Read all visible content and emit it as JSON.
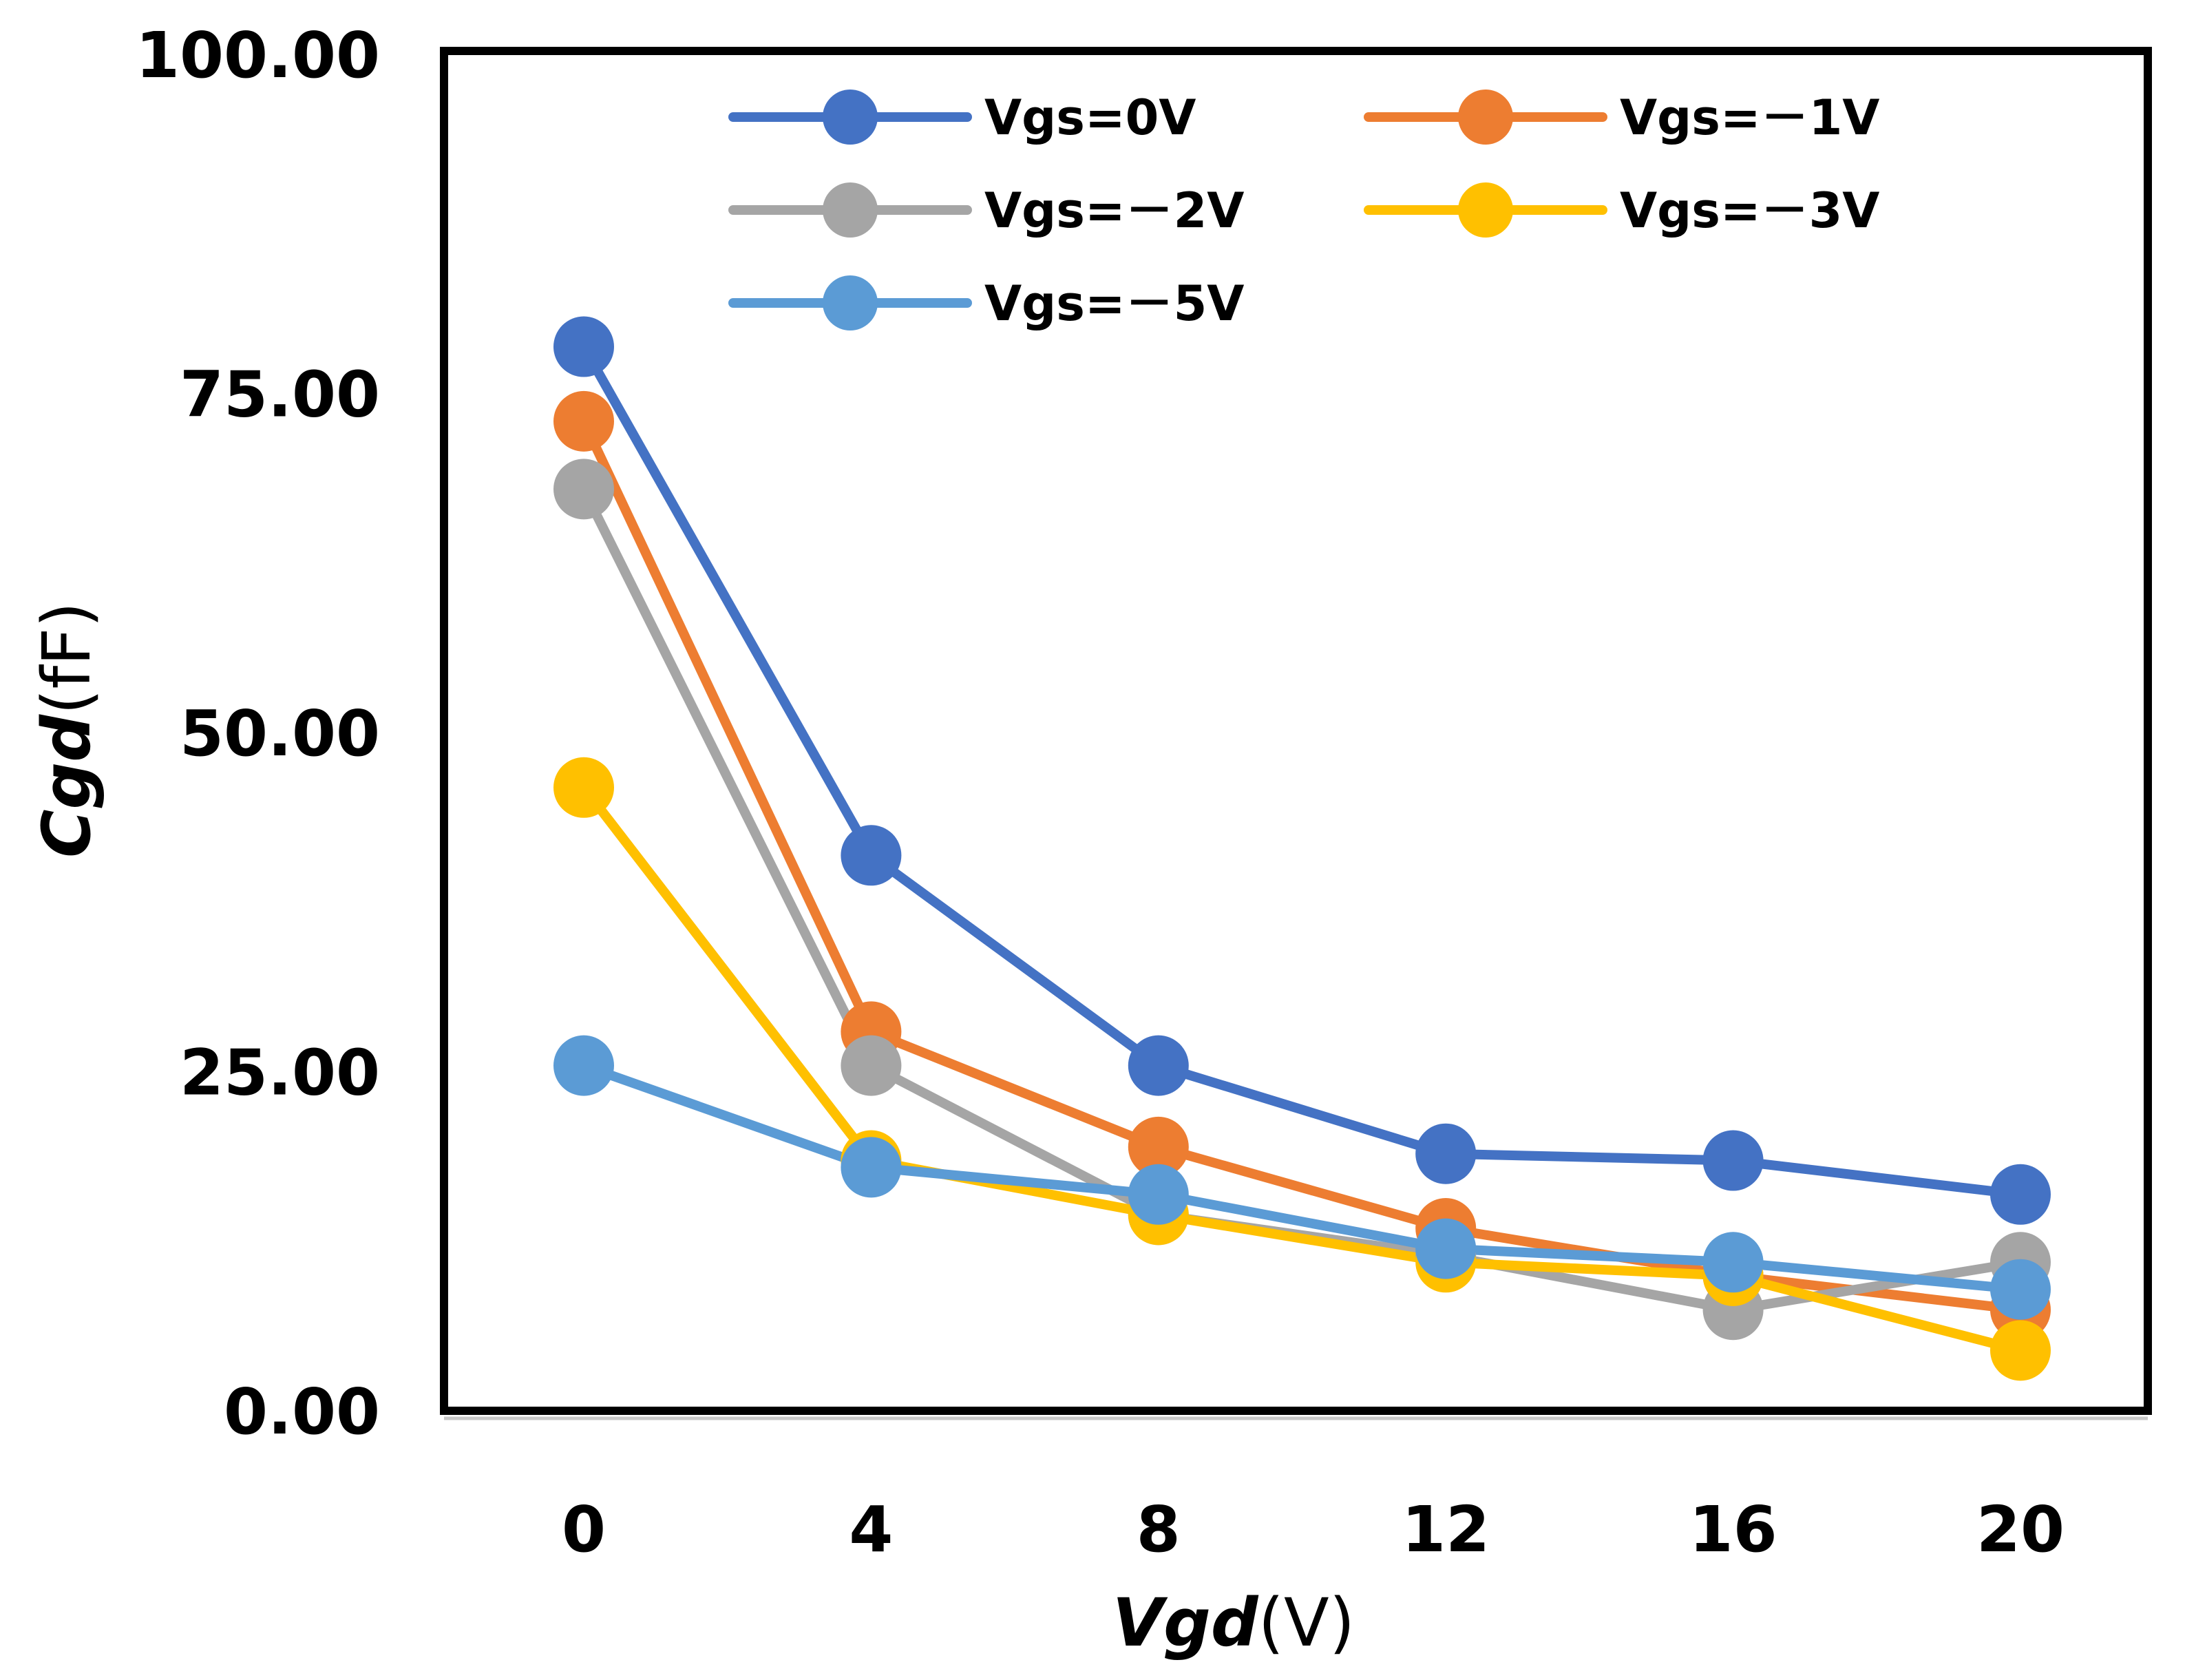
{
  "chart_data": {
    "type": "line",
    "title": "",
    "xlabel": "Vgd(V)",
    "xlabel_parts": {
      "italic": "Vgd",
      "unit": "(V)"
    },
    "ylabel": "Cgd(fF)",
    "ylabel_parts": {
      "italic": "Cgd",
      "unit": "(fF)"
    },
    "x": [
      0,
      4,
      8,
      12,
      16,
      20
    ],
    "x_tick_labels": [
      "0",
      "4",
      "8",
      "12",
      "16",
      "20"
    ],
    "ylim": [
      0,
      100
    ],
    "y_ticks": [
      0,
      25,
      50,
      75,
      100
    ],
    "y_tick_labels": [
      "0.00",
      "25.00",
      "50.00",
      "75.00",
      "100.00"
    ],
    "grid": false,
    "legend_position": "top",
    "series": [
      {
        "name": "Vgs=0V",
        "color": "#4472C4",
        "values": [
          78.5,
          41.0,
          25.5,
          19.0,
          18.5,
          16.0
        ]
      },
      {
        "name": "Vgs=－1V",
        "color": "#ED7D31",
        "values": [
          73.0,
          28.0,
          19.5,
          13.5,
          10.0,
          7.5
        ]
      },
      {
        "name": "Vgs=－2V",
        "color": "#A5A5A5",
        "values": [
          68.0,
          25.5,
          14.5,
          11.5,
          7.5,
          11.0
        ]
      },
      {
        "name": "Vgs=－3V",
        "color": "#FFC000",
        "values": [
          46.0,
          18.5,
          14.5,
          11.0,
          10.0,
          4.5
        ]
      },
      {
        "name": "Vgs=－5V",
        "color": "#5B9BD5",
        "values": [
          25.5,
          18.0,
          16.0,
          12.0,
          11.0,
          9.0
        ]
      }
    ]
  }
}
